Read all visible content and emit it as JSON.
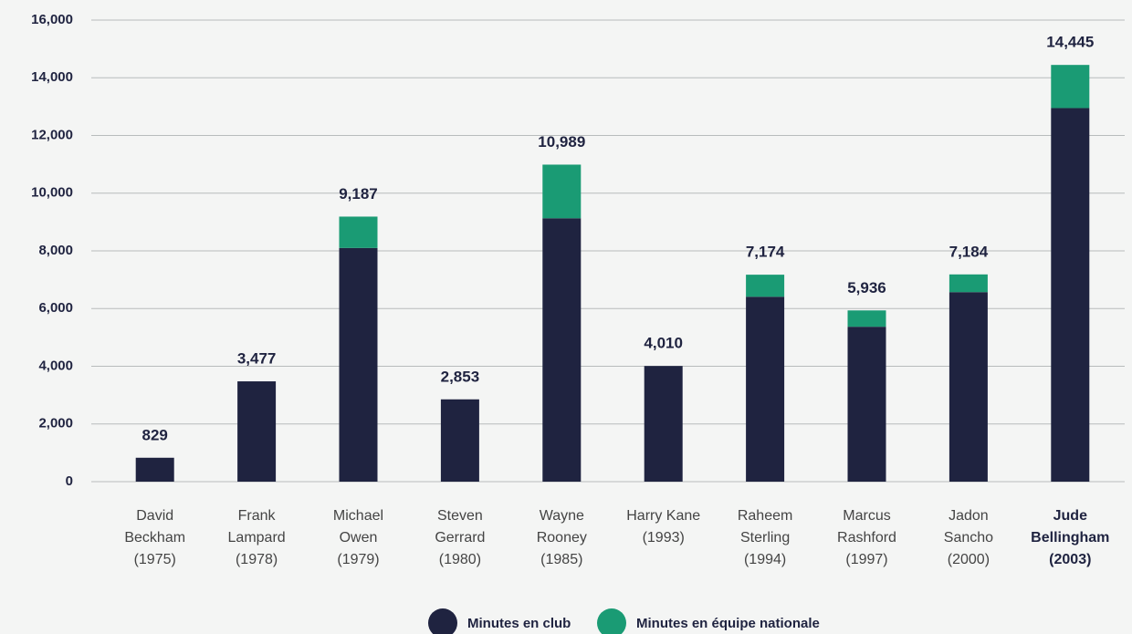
{
  "chart_data": {
    "type": "stacked_bar",
    "categories": [
      [
        "David",
        "Beckham",
        "(1975)"
      ],
      [
        "Frank",
        "Lampard",
        "(1978)"
      ],
      [
        "Michael",
        "Owen",
        "(1979)"
      ],
      [
        "Steven",
        "Gerrard",
        "(1980)"
      ],
      [
        "Wayne",
        "Rooney",
        "(1985)"
      ],
      [
        "Harry Kane",
        "(1993)"
      ],
      [
        "Raheem",
        "Sterling",
        "(1994)"
      ],
      [
        "Marcus",
        "Rashford",
        "(1997)"
      ],
      [
        "Jadon",
        "Sancho",
        "(2000)"
      ],
      [
        "Jude",
        "Bellingham",
        "(2003)"
      ]
    ],
    "highlight_index": 9,
    "series": [
      {
        "name": "Minutes en club",
        "color": "#1f2340",
        "values": [
          829,
          3477,
          8100,
          2853,
          9130,
          4010,
          6410,
          5370,
          6570,
          12950
        ]
      },
      {
        "name": "Minutes en équipe nationale",
        "color": "#1a9b74",
        "values": [
          0,
          0,
          1087,
          0,
          1859,
          0,
          764,
          566,
          614,
          1495
        ]
      }
    ],
    "total_labels": [
      "829",
      "3,477",
      "9,187",
      "2,853",
      "10,989",
      "4,010",
      "7,174",
      "5,936",
      "7,184",
      "14,445"
    ],
    "ylim": [
      0,
      16000
    ],
    "yticks": [
      0,
      {
        "value": 2000,
        "label": "2,000"
      },
      {
        "value": 4000,
        "label": "4,000"
      },
      {
        "value": 6000,
        "label": "6,000"
      },
      {
        "value": 8000,
        "label": "8,000"
      },
      {
        "value": 10000,
        "label": "10,000"
      },
      {
        "value": 12000,
        "label": "12,000"
      },
      {
        "value": 14000,
        "label": "14,000"
      },
      {
        "value": 16000,
        "label": "16,000"
      }
    ],
    "grid": true,
    "legend": "bottom"
  }
}
